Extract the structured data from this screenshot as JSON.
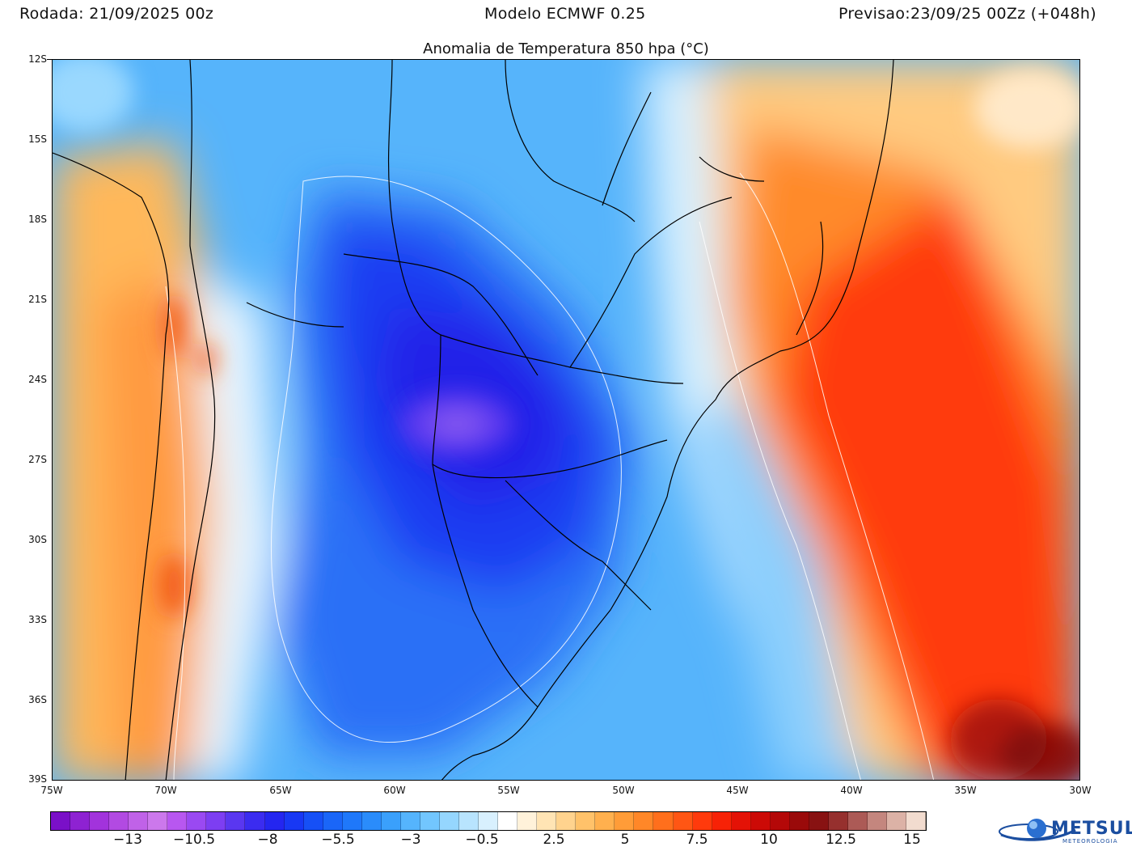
{
  "header": {
    "run": "Rodada: 21/09/2025 00z",
    "model": "Modelo ECMWF 0.25",
    "forecast": "Previsao:23/09/25 00Zz (+048h)"
  },
  "title": "Anomalia de Temperatura 850 hpa (°C)",
  "lat_labels": [
    "12S",
    "15S",
    "18S",
    "21S",
    "24S",
    "27S",
    "30S",
    "33S",
    "36S",
    "39S"
  ],
  "lon_labels": [
    "75W",
    "70W",
    "65W",
    "60W",
    "55W",
    "50W",
    "45W",
    "40W",
    "35W",
    "30W"
  ],
  "colorbar": {
    "labels": [
      "−13",
      "−10.5",
      "−8",
      "−5.5",
      "−3",
      "−0.5",
      "2.5",
      "5",
      "7.5",
      "10",
      "12.5",
      "15"
    ],
    "colors": [
      "#7a10c8",
      "#8e22d2",
      "#a233dc",
      "#b24ae2",
      "#c062e8",
      "#cc78ec",
      "#b857f0",
      "#9a49f2",
      "#7d3ef2",
      "#5a37f0",
      "#3b2cf0",
      "#2426f0",
      "#1838f4",
      "#1650f6",
      "#1a66f8",
      "#1f78fa",
      "#2a8cfb",
      "#3aa0fc",
      "#55b4fd",
      "#72c6fe",
      "#95d6fe",
      "#b8e4fe",
      "#d8f0fe",
      "#ffffff",
      "#fff2da",
      "#ffe4b4",
      "#ffd38e",
      "#ffc26a",
      "#ffb04e",
      "#ff9c38",
      "#ff8728",
      "#ff6f1c",
      "#ff5614",
      "#ff3a0c",
      "#f72206",
      "#e41206",
      "#cc0a06",
      "#b40808",
      "#9a0a0a",
      "#881212",
      "#96302e",
      "#ac5a56",
      "#c4867e",
      "#dcb2a6",
      "#f2dccf"
    ],
    "brand": "#1b4ea0"
  },
  "logo": {
    "name": "METSUL",
    "sub": "METEOROLOGIA"
  }
}
